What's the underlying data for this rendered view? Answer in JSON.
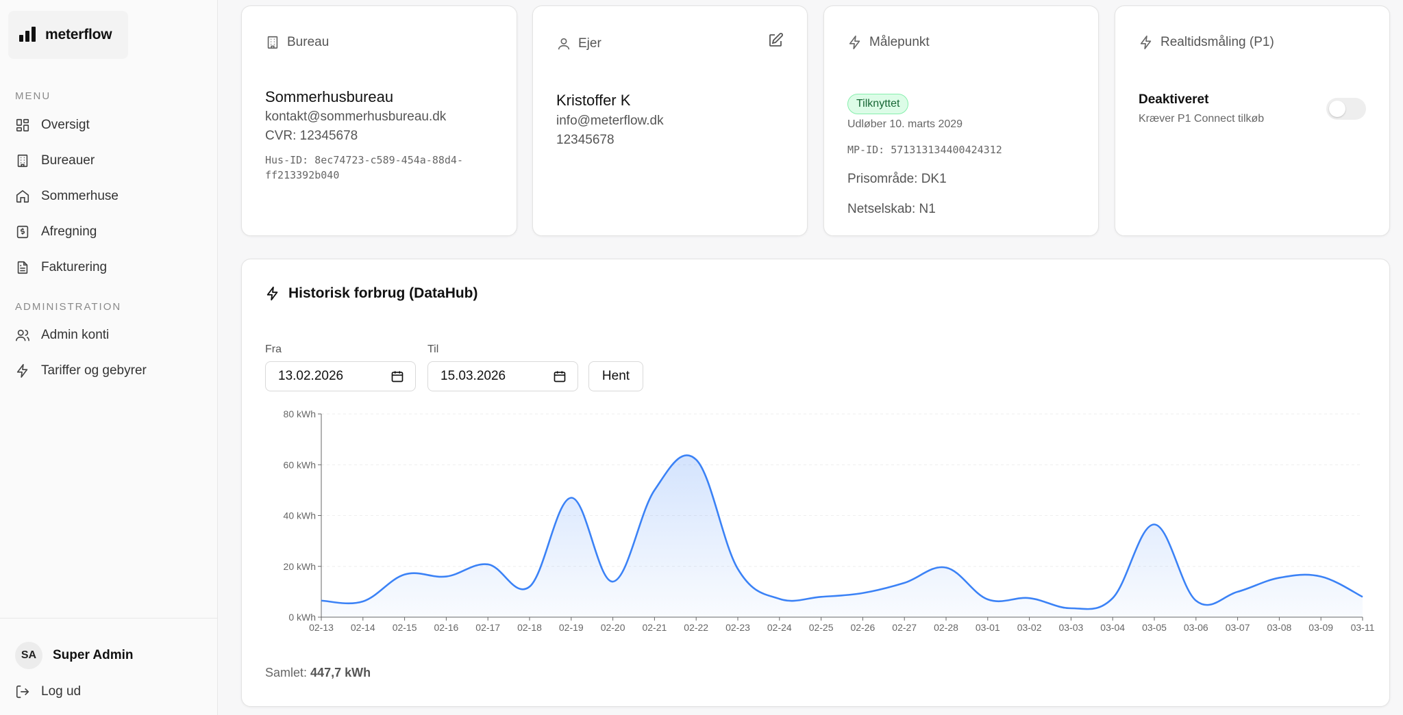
{
  "app": {
    "name": "meterflow"
  },
  "sidebar": {
    "menu_label": "MENU",
    "menu_items": [
      {
        "label": "Oversigt",
        "icon": "grid-icon"
      },
      {
        "label": "Bureauer",
        "icon": "building-icon"
      },
      {
        "label": "Sommerhuse",
        "icon": "home-icon"
      },
      {
        "label": "Afregning",
        "icon": "receipt-icon"
      },
      {
        "label": "Fakturering",
        "icon": "file-text-icon"
      }
    ],
    "admin_label": "ADMINISTRATION",
    "admin_items": [
      {
        "label": "Admin konti",
        "icon": "users-icon"
      },
      {
        "label": "Tariffer og gebyrer",
        "icon": "zap-icon"
      }
    ],
    "user": {
      "initials": "SA",
      "name": "Super Admin"
    },
    "logout_label": "Log ud"
  },
  "cards": {
    "bureau": {
      "title": "Bureau",
      "name": "Sommerhusbureau",
      "email": "kontakt@sommerhusbureau.dk",
      "cvr": "CVR: 12345678",
      "hus_id_line1": "Hus-ID: 8ec74723-c589-454a-88d4-",
      "hus_id_line2": "ff213392b040"
    },
    "ejer": {
      "title": "Ejer",
      "name": "Kristoffer K",
      "email": "info@meterflow.dk",
      "phone": "12345678"
    },
    "malepunkt": {
      "title": "Målepunkt",
      "status": "Tilknyttet",
      "status_color": "#dcfce7",
      "expires": "Udløber 10. marts 2029",
      "mp_id": "MP-ID: 571313134400424312",
      "price_area": "Prisområde: DK1",
      "grid_company": "Netselskab: N1"
    },
    "realtime": {
      "title": "Realtidsmåling (P1)",
      "state": "Deaktiveret",
      "note": "Kræver P1 Connect tilkøb",
      "enabled": false
    }
  },
  "history": {
    "title": "Historisk forbrug (DataHub)",
    "from_label": "Fra",
    "from_value": "13.02.2026",
    "to_label": "Til",
    "to_value": "15.03.2026",
    "fetch_label": "Hent",
    "total_label": "Samlet:",
    "total_value": "447,7 kWh"
  },
  "chart_data": {
    "type": "area",
    "title": "",
    "xlabel": "",
    "ylabel": "",
    "ylim": [
      0,
      80
    ],
    "y_ticks": [
      "0 kWh",
      "20 kWh",
      "40 kWh",
      "60 kWh",
      "80 kWh"
    ],
    "y_tick_values": [
      0,
      20,
      40,
      60,
      80
    ],
    "grid": true,
    "line_color": "#3b82f6",
    "categories": [
      "02-13",
      "02-14",
      "02-15",
      "02-16",
      "02-17",
      "02-18",
      "02-19",
      "02-20",
      "02-21",
      "02-22",
      "02-23",
      "02-24",
      "02-25",
      "02-26",
      "02-27",
      "02-28",
      "03-01",
      "03-02",
      "03-03",
      "03-04",
      "03-05",
      "03-06",
      "03-07",
      "03-08",
      "03-09",
      "03-11"
    ],
    "series": [
      {
        "name": "",
        "values": [
          6.5,
          6.2,
          16.8,
          16.0,
          20.8,
          12.0,
          47.0,
          14.0,
          50.0,
          62.0,
          19.0,
          7.2,
          8.0,
          9.5,
          13.5,
          19.5,
          7.0,
          7.5,
          3.5,
          7.5,
          36.5,
          6.5,
          10.0,
          15.5,
          16.0,
          8.0
        ]
      }
    ]
  }
}
